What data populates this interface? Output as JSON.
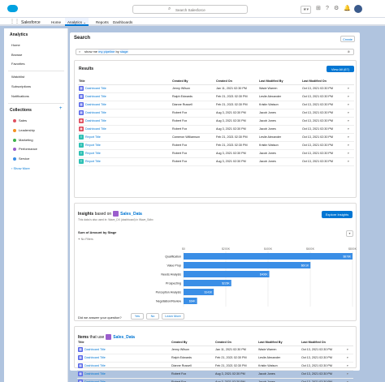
{
  "topbar": {
    "app_logo": "salesforce-cloud",
    "search_placeholder": "Search Salesforce",
    "icons": [
      "favorites-icon",
      "add-icon",
      "help-icon",
      "setup-icon",
      "notifications-icon",
      "avatar"
    ]
  },
  "navbar": {
    "app_name": "Salesforce",
    "tabs": [
      {
        "label": "Home",
        "active": false
      },
      {
        "label": "Analytics",
        "active": true
      },
      {
        "label": "Reports",
        "active": false
      },
      {
        "label": "Dashboards",
        "active": false
      }
    ]
  },
  "sidebar": {
    "heading": "Analytics",
    "items": [
      "Home",
      "Browse",
      "Favorites"
    ],
    "items2": [
      "Watchlist",
      "Subscriptions",
      "Notifications"
    ],
    "collections_heading": "Collections",
    "collections": [
      {
        "label": "Sales",
        "color": "#e04f5f"
      },
      {
        "label": "Leadership",
        "color": "#f59121"
      },
      {
        "label": "Marketing",
        "color": "#3db24b"
      },
      {
        "label": "Performance",
        "color": "#9b5ecd"
      },
      {
        "label": "Service",
        "color": "#3a8ee6"
      }
    ],
    "see_more": "Show More"
  },
  "search_card": {
    "title": "Search",
    "create_label": "Create",
    "query_prefix": "show me",
    "query_pill1": "my pipeline",
    "query_mid": "by",
    "query_pill2": "stage"
  },
  "results": {
    "title": "Results",
    "view_all": "View All (67)",
    "columns": [
      "Title",
      "Created By",
      "Created On",
      "Last Modified By",
      "Last Modified On"
    ],
    "rows": [
      {
        "type": "dashboard",
        "title": "Dashboard Title",
        "created_by": "Jenny Wilson",
        "created_on": "Jan 11, 2021 02:30 PM",
        "modified_by": "Wade Warren",
        "modified_on": "Oct 13, 2021 02:30 PM"
      },
      {
        "type": "dashboard",
        "title": "Dashboard Title",
        "created_by": "Ralph Edwards",
        "created_on": "Feb 21, 2021 02:30 PM",
        "modified_by": "Leslie Alexander",
        "modified_on": "Oct 13, 2021 02:30 PM"
      },
      {
        "type": "dashboard",
        "title": "Dashboard Title",
        "created_by": "Dianne Russell",
        "created_on": "Feb 21, 2021 02:30 PM",
        "modified_by": "Kristin Watson",
        "modified_on": "Oct 13, 2021 02:30 PM"
      },
      {
        "type": "dashboard",
        "title": "Dashboard Title",
        "created_by": "Robert Fox",
        "created_on": "Aug 3, 2021 02:30 PM",
        "modified_by": "Jacob Jones",
        "modified_on": "Oct 13, 2021 02:30 PM"
      },
      {
        "type": "lens",
        "title": "Dashboard Title",
        "created_by": "Robert Fox",
        "created_on": "Aug 3, 2021 02:30 PM",
        "modified_by": "Jacob Jones",
        "modified_on": "Oct 13, 2021 02:30 PM"
      },
      {
        "type": "lens",
        "title": "Dashboard Title",
        "created_by": "Robert Fox",
        "created_on": "Aug 3, 2021 02:30 PM",
        "modified_by": "Jacob Jones",
        "modified_on": "Oct 13, 2021 02:30 PM"
      },
      {
        "type": "report",
        "title": "Report Title",
        "created_by": "Cameron Williamson",
        "created_on": "Feb 21, 2021 02:30 PM",
        "modified_by": "Leslie Alexander",
        "modified_on": "Oct 13, 2021 02:30 PM"
      },
      {
        "type": "report",
        "title": "Report Title",
        "created_by": "Robert Fox",
        "created_on": "Feb 21, 2021 02:30 PM",
        "modified_by": "Kristin Watson",
        "modified_on": "Oct 13, 2021 02:30 PM"
      },
      {
        "type": "report",
        "title": "Report Title",
        "created_by": "Robert Fox",
        "created_on": "Aug 3, 2021 02:30 PM",
        "modified_by": "Jacob Jones",
        "modified_on": "Oct 13, 2021 02:30 PM"
      },
      {
        "type": "report",
        "title": "Report Title",
        "created_by": "Robert Fox",
        "created_on": "Aug 3, 2021 02:30 PM",
        "modified_by": "Jacob Jones",
        "modified_on": "Oct 13, 2021 02:30 PM"
      }
    ]
  },
  "insights": {
    "title_prefix": "Insights",
    "based_on": "based on",
    "dataset": "Sales_Data",
    "subtitle": "This data is also used in: Wave_DX (dashboard) in Wave_Sdbx",
    "explore_label": "Explore Insights",
    "chart_title": "Sum of Amount by Stage",
    "filter_text": "No Filters",
    "question": "Did we answer your question?",
    "answers": [
      "Yes",
      "No",
      "Learn More"
    ]
  },
  "chart_data": {
    "type": "bar",
    "orientation": "horizontal",
    "title": "Sum of Amount by Stage",
    "categories": [
      "Qualification",
      "Value Prop",
      "Needs Analysis",
      "Prospecting",
      "Perception Analysis",
      "Negotiation/Review"
    ],
    "values": [
      878,
      601,
      406,
      226,
      143,
      64
    ],
    "value_labels": [
      "$878K",
      "$601K",
      "$406K",
      "$226K",
      "$143K",
      "$64K"
    ],
    "xlim": [
      0,
      800
    ],
    "x_ticks": [
      "$0",
      "$200K",
      "$400K",
      "$600K",
      "$800K"
    ],
    "grid": true,
    "color": "#3a8ee6"
  },
  "items": {
    "title_prefix": "Items",
    "that_use": "that use",
    "dataset": "Sales_Data",
    "columns": [
      "Title",
      "Created By",
      "Created On",
      "Last Modified By",
      "Last Modified On"
    ],
    "rows": [
      {
        "type": "dashboard",
        "title": "Dashboard Title",
        "created_by": "Jenny Wilson",
        "created_on": "Jan 11, 2021 02:30 PM",
        "modified_by": "Wade Warren",
        "modified_on": "Oct 13, 2021 02:30 PM"
      },
      {
        "type": "dashboard",
        "title": "Dashboard Title",
        "created_by": "Ralph Edwards",
        "created_on": "Feb 21, 2021 02:30 PM",
        "modified_by": "Leslie Alexander",
        "modified_on": "Oct 13, 2021 02:30 PM"
      },
      {
        "type": "dashboard",
        "title": "Dashboard Title",
        "created_by": "Dianne Russell",
        "created_on": "Feb 21, 2021 02:30 PM",
        "modified_by": "Kristin Watson",
        "modified_on": "Oct 13, 2021 02:30 PM"
      },
      {
        "type": "dashboard",
        "title": "Dashboard Title",
        "created_by": "Robert Fox",
        "created_on": "Aug 3, 2021 02:30 PM",
        "modified_by": "Jacob Jones",
        "modified_on": "Oct 13, 2021 02:30 PM"
      },
      {
        "type": "dashboard",
        "title": "Dashboard Title",
        "created_by": "Robert Fox",
        "created_on": "Aug 3, 2021 02:30 PM",
        "modified_by": "Jacob Jones",
        "modified_on": "Oct 13, 2021 02:30 PM"
      },
      {
        "type": "dashboard",
        "title": "Dashboard Title",
        "created_by": "Robert Fox",
        "created_on": "Aug 3, 2021 02:30 PM",
        "modified_by": "Jacob Jones",
        "modified_on": "Oct 13, 2021 02:30 PM"
      }
    ]
  },
  "colors": {
    "brand": "#0176d3",
    "dashboard_icon": "#5867e8",
    "lens_icon": "#e04f5f",
    "report_icon": "#2dc0b3",
    "dataset_icon": "#9b5ecd"
  }
}
